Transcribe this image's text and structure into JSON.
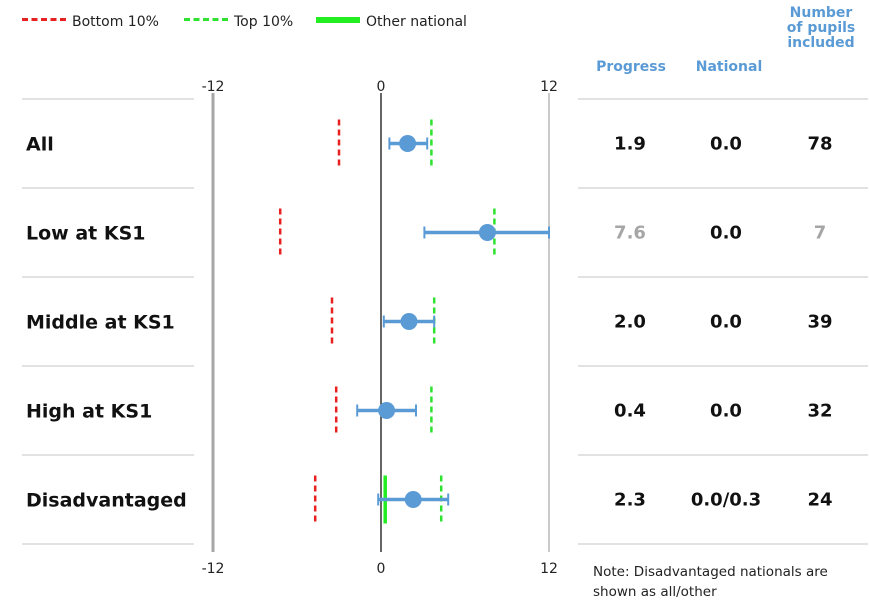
{
  "legend": {
    "bottom_label": "Bottom 10%",
    "top_label": "Top 10%",
    "other_label": "Other national"
  },
  "headers": {
    "progress": "Progress",
    "national": "National",
    "pupils": "Number of pupils included"
  },
  "note": "Note: Disadvantaged nationals are shown as all/other",
  "colors": {
    "bottom_marker": "#e8201f",
    "top_marker": "#2fe22f",
    "other_national": "#22ee22",
    "point": "#5b9bd5",
    "header": "#5b9bd5",
    "muted_text": "#a6a6a6"
  },
  "chart_data": {
    "type": "forest",
    "xlim": [
      -12,
      12
    ],
    "ticks": [
      "-12",
      "0",
      "12"
    ],
    "rows": [
      {
        "label": "All",
        "progress": 1.9,
        "ci_low": 0.6,
        "ci_high": 3.3,
        "bottom10": -3.0,
        "top10": 3.6,
        "other_national": null,
        "progress_text": "1.9",
        "national_text": "0.0",
        "pupils_text": "78",
        "muted": false
      },
      {
        "label": "Low at KS1",
        "progress": 7.6,
        "ci_low": 3.1,
        "ci_high": 12.0,
        "bottom10": -7.2,
        "top10": 8.1,
        "other_national": null,
        "progress_text": "7.6",
        "national_text": "0.0",
        "pupils_text": "7",
        "muted": true
      },
      {
        "label": "Middle at KS1",
        "progress": 2.0,
        "ci_low": 0.2,
        "ci_high": 3.8,
        "bottom10": -3.5,
        "top10": 3.8,
        "other_national": null,
        "progress_text": "2.0",
        "national_text": "0.0",
        "pupils_text": "39",
        "muted": false
      },
      {
        "label": "High at KS1",
        "progress": 0.4,
        "ci_low": -1.7,
        "ci_high": 2.5,
        "bottom10": -3.2,
        "top10": 3.6,
        "other_national": null,
        "progress_text": "0.4",
        "national_text": "0.0",
        "pupils_text": "32",
        "muted": false
      },
      {
        "label": "Disadvantaged",
        "progress": 2.3,
        "ci_low": -0.2,
        "ci_high": 4.8,
        "bottom10": -4.7,
        "top10": 4.3,
        "other_national": 0.3,
        "progress_text": "2.3",
        "national_text": "0.0/0.3",
        "pupils_text": "24",
        "muted": false
      }
    ]
  }
}
